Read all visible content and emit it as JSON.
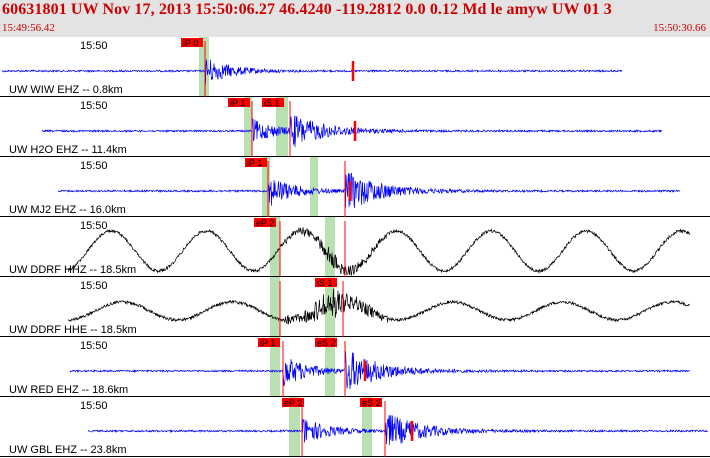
{
  "header": {
    "title": "60631801 UW Nov 17, 2013 15:50:06.27    46.4240 -119.2812  0.0 0.12 Md le amyw UW 01    3",
    "start_time": "15:49:56.42",
    "end_time": "15:50:30.66"
  },
  "colors": {
    "header_bg": "#e3e3e3",
    "header_text": "#cc0000",
    "trace_blue": "#0000ff",
    "trace_black": "#000000",
    "pick_red": "#ff0000",
    "window_green": "#b8e0b0"
  },
  "traces": [
    {
      "label": "UW WIW EHZ -- 0.8km",
      "time_label": "15:50",
      "color": "blue",
      "pick_labels": [
        "iP 0"
      ],
      "amplitude": 14
    },
    {
      "label": "UW H2O EHZ -- 11.4km",
      "time_label": "15:50",
      "color": "blue",
      "pick_labels": [
        "iP 1",
        "iS 1"
      ],
      "amplitude": 12
    },
    {
      "label": "UW MJ2 EHZ -- 16.0km",
      "time_label": "15:50",
      "color": "blue",
      "pick_labels": [
        "iP 1"
      ],
      "amplitude": 16
    },
    {
      "label": "UW DDRF HHZ -- 18.5km",
      "time_label": "15:50",
      "color": "black",
      "pick_labels": [
        "eP 2"
      ],
      "amplitude": 10
    },
    {
      "label": "UW DDRF HHE -- 18.5km",
      "time_label": "15:50",
      "color": "black",
      "pick_labels": [
        "iS 1"
      ],
      "amplitude": 10
    },
    {
      "label": "UW RED EHZ -- 18.6km",
      "time_label": "15:50",
      "color": "blue",
      "pick_labels": [
        "iP 1",
        "eS 2"
      ],
      "amplitude": 16
    },
    {
      "label": "UW GBL EHZ -- 23.8km",
      "time_label": "15:50",
      "color": "blue",
      "pick_labels": [
        "eP 2",
        "eS 2"
      ],
      "amplitude": 14
    }
  ]
}
